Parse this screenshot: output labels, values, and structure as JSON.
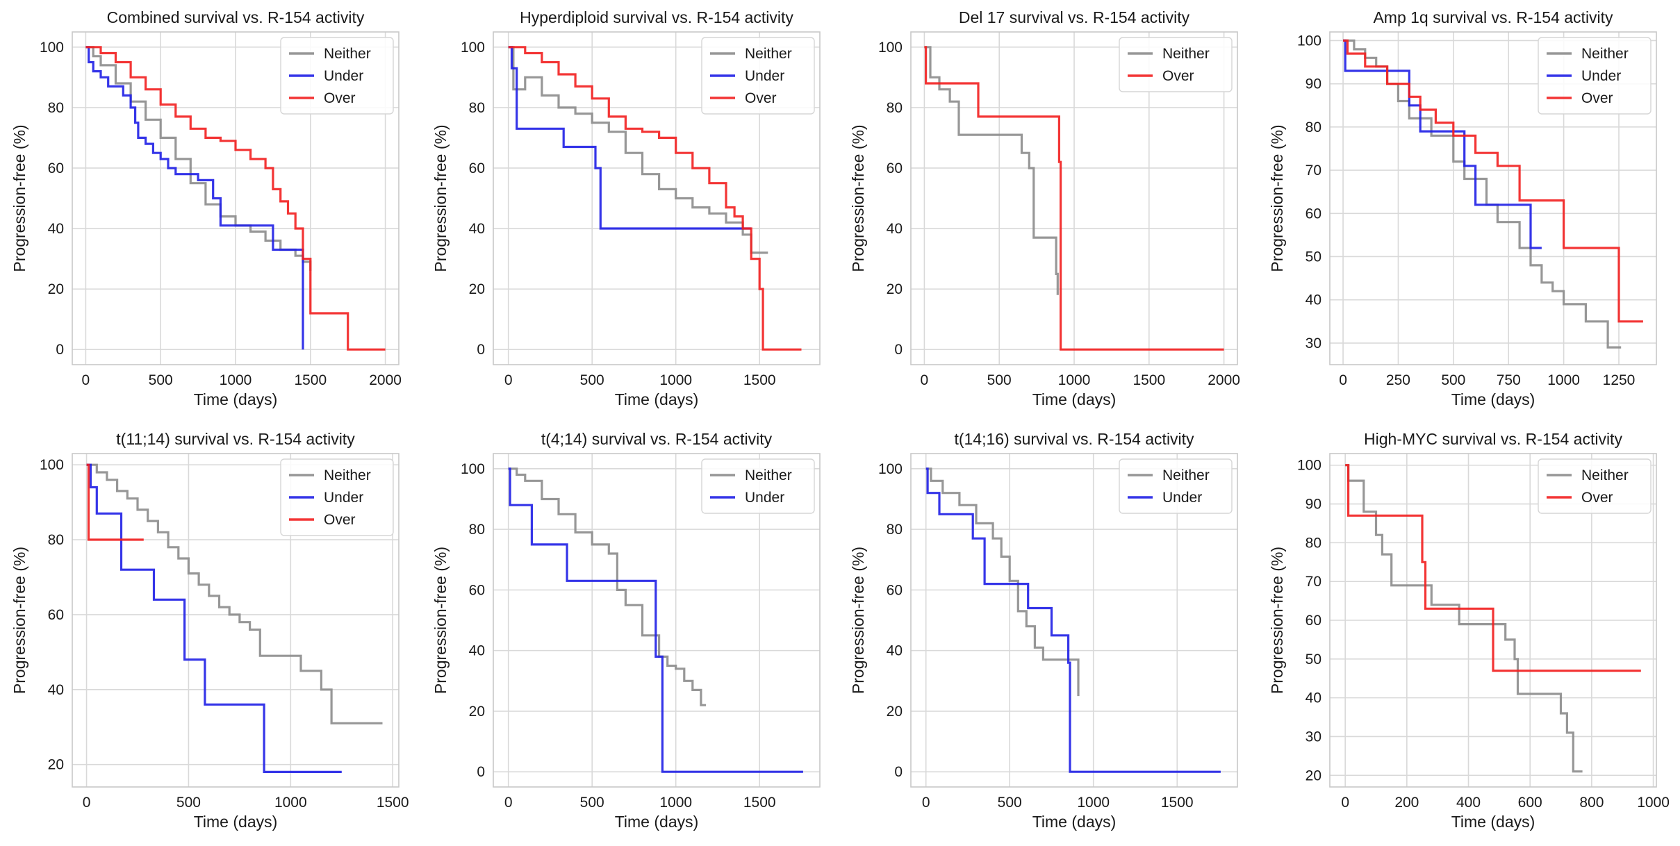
{
  "figure": {
    "background": "#ffffff",
    "grid_color": "#d9d9d9",
    "frame_color": "#c8c8c8",
    "colors": {
      "Neither": "#8c8c8c",
      "Under": "#1f1fe6",
      "Over": "#f21f1f"
    }
  },
  "chart_data": [
    {
      "type": "line",
      "title": "Combined survival vs. R-154 activity",
      "xlabel": "Time (days)",
      "ylabel": "Progression-free (%)",
      "xlim": [
        -90,
        2090
      ],
      "ylim": [
        -5,
        105
      ],
      "xticks": [
        0,
        500,
        1000,
        1500,
        2000
      ],
      "yticks": [
        0,
        20,
        40,
        60,
        80,
        100
      ],
      "grid": true,
      "legend_position": "top-right",
      "series": [
        {
          "name": "Neither",
          "x": [
            0,
            50,
            100,
            200,
            300,
            400,
            500,
            600,
            700,
            800,
            900,
            1000,
            1100,
            1200,
            1300,
            1400,
            1450,
            1500
          ],
          "y": [
            100,
            97,
            94,
            88,
            82,
            76,
            70,
            63,
            55,
            48,
            44,
            41,
            39,
            36,
            33,
            31,
            29,
            26
          ]
        },
        {
          "name": "Under",
          "x": [
            0,
            20,
            50,
            100,
            150,
            250,
            300,
            330,
            350,
            400,
            450,
            500,
            550,
            600,
            650,
            750,
            850,
            900,
            1050,
            1100,
            1250,
            1420,
            1450
          ],
          "y": [
            100,
            95,
            92,
            90,
            87,
            84,
            80,
            75,
            70,
            68,
            65,
            63,
            60,
            58,
            58,
            56,
            50,
            41,
            41,
            41,
            33,
            33,
            0
          ]
        },
        {
          "name": "Over",
          "x": [
            0,
            100,
            200,
            300,
            400,
            500,
            600,
            700,
            800,
            900,
            1000,
            1100,
            1200,
            1250,
            1300,
            1350,
            1400,
            1450,
            1500,
            1750,
            2000
          ],
          "y": [
            100,
            98,
            95,
            90,
            86,
            81,
            77,
            73,
            70,
            69,
            66,
            63,
            60,
            53,
            49,
            45,
            40,
            30,
            12,
            0,
            0
          ]
        }
      ]
    },
    {
      "type": "line",
      "title": "Hyperdiploid survival vs. R-154 activity",
      "xlabel": "Time (days)",
      "ylabel": "Progression-free (%)",
      "xlim": [
        -90,
        1860
      ],
      "ylim": [
        -5,
        105
      ],
      "xticks": [
        0,
        500,
        1000,
        1500
      ],
      "yticks": [
        0,
        20,
        40,
        60,
        80,
        100
      ],
      "grid": true,
      "legend_position": "top-right",
      "series": [
        {
          "name": "Neither",
          "x": [
            0,
            30,
            100,
            200,
            300,
            400,
            500,
            600,
            700,
            800,
            900,
            1000,
            1100,
            1200,
            1300,
            1400,
            1450,
            1550
          ],
          "y": [
            100,
            86,
            90,
            84,
            80,
            78,
            75,
            72,
            65,
            58,
            53,
            50,
            47,
            45,
            42,
            38,
            32,
            32
          ]
        },
        {
          "name": "Under",
          "x": [
            0,
            20,
            50,
            300,
            330,
            520,
            550,
            1450
          ],
          "y": [
            100,
            93,
            73,
            73,
            67,
            60,
            40,
            40
          ]
        },
        {
          "name": "Over",
          "x": [
            0,
            100,
            200,
            300,
            400,
            500,
            600,
            700,
            800,
            900,
            1000,
            1100,
            1200,
            1300,
            1350,
            1400,
            1450,
            1500,
            1520,
            1750
          ],
          "y": [
            100,
            98,
            95,
            91,
            87,
            83,
            77,
            73,
            72,
            70,
            65,
            60,
            55,
            47,
            44,
            40,
            30,
            20,
            0,
            0
          ]
        }
      ]
    },
    {
      "type": "line",
      "title": "Del 17 survival vs. R-154 activity",
      "xlabel": "Time (days)",
      "ylabel": "Progression-free (%)",
      "xlim": [
        -90,
        2090
      ],
      "ylim": [
        -5,
        105
      ],
      "xticks": [
        0,
        500,
        1000,
        1500,
        2000
      ],
      "yticks": [
        0,
        20,
        40,
        60,
        80,
        100
      ],
      "grid": true,
      "legend_position": "top-right",
      "series": [
        {
          "name": "Neither",
          "x": [
            0,
            40,
            100,
            170,
            230,
            400,
            550,
            650,
            700,
            730,
            870,
            880,
            890
          ],
          "y": [
            100,
            90,
            86,
            82,
            71,
            71,
            71,
            65,
            60,
            37,
            37,
            25,
            18
          ]
        },
        {
          "name": "Over",
          "x": [
            0,
            10,
            330,
            360,
            900,
            910,
            2000
          ],
          "y": [
            100,
            88,
            88,
            77,
            62,
            0,
            0
          ]
        }
      ]
    },
    {
      "type": "line",
      "title": "Amp 1q survival vs. R-154 activity",
      "xlabel": "Time (days)",
      "ylabel": "Progression-free (%)",
      "xlim": [
        -60,
        1420
      ],
      "ylim": [
        25,
        102
      ],
      "xticks": [
        0,
        250,
        500,
        750,
        1000,
        1250
      ],
      "yticks": [
        30,
        40,
        50,
        60,
        70,
        80,
        90,
        100
      ],
      "grid": true,
      "legend_position": "top-right",
      "series": [
        {
          "name": "Neither",
          "x": [
            0,
            50,
            100,
            150,
            200,
            250,
            300,
            400,
            500,
            550,
            650,
            700,
            800,
            850,
            900,
            950,
            1000,
            1100,
            1150,
            1200,
            1260
          ],
          "y": [
            100,
            98,
            96,
            94,
            90,
            86,
            82,
            78,
            72,
            68,
            62,
            58,
            52,
            48,
            44,
            42,
            39,
            35,
            35,
            29,
            29
          ]
        },
        {
          "name": "Under",
          "x": [
            0,
            10,
            260,
            300,
            350,
            450,
            550,
            600,
            800,
            850,
            900
          ],
          "y": [
            100,
            93,
            93,
            85,
            79,
            79,
            71,
            62,
            62,
            52,
            52
          ]
        },
        {
          "name": "Over",
          "x": [
            0,
            20,
            100,
            200,
            300,
            350,
            420,
            500,
            600,
            700,
            800,
            900,
            1000,
            1200,
            1250,
            1360
          ],
          "y": [
            100,
            97,
            94,
            90,
            87,
            84,
            81,
            78,
            74,
            71,
            63,
            63,
            52,
            52,
            35,
            35
          ]
        }
      ]
    },
    {
      "type": "line",
      "title": "t(11;14) survival vs. R-154 activity",
      "xlabel": "Time (days)",
      "ylabel": "Progression-free (%)",
      "xlim": [
        -70,
        1530
      ],
      "ylim": [
        14,
        103
      ],
      "xticks": [
        0,
        500,
        1000,
        1500
      ],
      "yticks": [
        20,
        40,
        60,
        80,
        100
      ],
      "grid": true,
      "legend_position": "top-right",
      "series": [
        {
          "name": "Neither",
          "x": [
            0,
            50,
            100,
            150,
            200,
            250,
            300,
            350,
            400,
            450,
            500,
            550,
            600,
            650,
            700,
            750,
            800,
            850,
            1050,
            1150,
            1200,
            1450
          ],
          "y": [
            100,
            98,
            96,
            93,
            91,
            88,
            85,
            82,
            78,
            75,
            71,
            68,
            65,
            62,
            60,
            58,
            56,
            49,
            45,
            40,
            31,
            31
          ]
        },
        {
          "name": "Under",
          "x": [
            0,
            20,
            50,
            160,
            170,
            320,
            330,
            470,
            480,
            570,
            580,
            860,
            870,
            1250
          ],
          "y": [
            100,
            94,
            87,
            87,
            72,
            72,
            64,
            64,
            48,
            48,
            36,
            36,
            18,
            18
          ]
        },
        {
          "name": "Over",
          "x": [
            0,
            10,
            280
          ],
          "y": [
            100,
            80,
            80
          ]
        }
      ]
    },
    {
      "type": "line",
      "title": "t(4;14) survival vs. R-154 activity",
      "xlabel": "Time (days)",
      "ylabel": "Progression-free (%)",
      "xlim": [
        -90,
        1860
      ],
      "ylim": [
        -5,
        105
      ],
      "xticks": [
        0,
        500,
        1000,
        1500
      ],
      "yticks": [
        0,
        20,
        40,
        60,
        80,
        100
      ],
      "grid": true,
      "legend_position": "top-right",
      "series": [
        {
          "name": "Neither",
          "x": [
            0,
            50,
            100,
            200,
            300,
            400,
            500,
            600,
            650,
            700,
            800,
            900,
            950,
            1000,
            1050,
            1100,
            1150,
            1180
          ],
          "y": [
            100,
            98,
            96,
            90,
            85,
            79,
            75,
            72,
            60,
            55,
            45,
            38,
            35,
            34,
            30,
            27,
            22,
            22
          ]
        },
        {
          "name": "Under",
          "x": [
            0,
            10,
            130,
            140,
            340,
            350,
            870,
            880,
            910,
            920,
            1760
          ],
          "y": [
            100,
            88,
            88,
            75,
            75,
            63,
            63,
            38,
            38,
            0,
            0
          ]
        }
      ]
    },
    {
      "type": "line",
      "title": "t(14;16) survival vs. R-154 activity",
      "xlabel": "Time (days)",
      "ylabel": "Progression-free (%)",
      "xlim": [
        -90,
        1860
      ],
      "ylim": [
        -5,
        105
      ],
      "xticks": [
        0,
        500,
        1000,
        1500
      ],
      "yticks": [
        0,
        20,
        40,
        60,
        80,
        100
      ],
      "grid": true,
      "legend_position": "top-right",
      "series": [
        {
          "name": "Neither",
          "x": [
            0,
            30,
            100,
            200,
            300,
            400,
            450,
            500,
            550,
            600,
            650,
            700,
            800,
            900,
            910
          ],
          "y": [
            100,
            96,
            92,
            88,
            82,
            77,
            71,
            63,
            53,
            48,
            41,
            37,
            37,
            37,
            25
          ]
        },
        {
          "name": "Under",
          "x": [
            0,
            10,
            80,
            270,
            280,
            340,
            350,
            600,
            610,
            740,
            750,
            850,
            860,
            1760
          ],
          "y": [
            100,
            92,
            85,
            85,
            77,
            77,
            62,
            62,
            54,
            54,
            45,
            36,
            0,
            0
          ]
        }
      ]
    },
    {
      "type": "line",
      "title": "High-MYC survival vs. R-154 activity",
      "xlabel": "Time (days)",
      "ylabel": "Progression-free (%)",
      "xlim": [
        -50,
        1010
      ],
      "ylim": [
        17,
        103
      ],
      "xticks": [
        0,
        200,
        400,
        600,
        800,
        1000
      ],
      "yticks": [
        20,
        30,
        40,
        50,
        60,
        70,
        80,
        90,
        100
      ],
      "grid": true,
      "legend_position": "top-right",
      "series": [
        {
          "name": "Neither",
          "x": [
            0,
            10,
            60,
            100,
            120,
            150,
            270,
            280,
            370,
            480,
            520,
            550,
            560,
            650,
            700,
            720,
            740,
            770
          ],
          "y": [
            100,
            96,
            88,
            82,
            77,
            69,
            69,
            64,
            59,
            59,
            55,
            50,
            41,
            41,
            36,
            31,
            21,
            21
          ]
        },
        {
          "name": "Over",
          "x": [
            0,
            10,
            240,
            250,
            260,
            470,
            480,
            960
          ],
          "y": [
            100,
            87,
            87,
            75,
            63,
            63,
            47,
            47
          ]
        }
      ]
    }
  ]
}
